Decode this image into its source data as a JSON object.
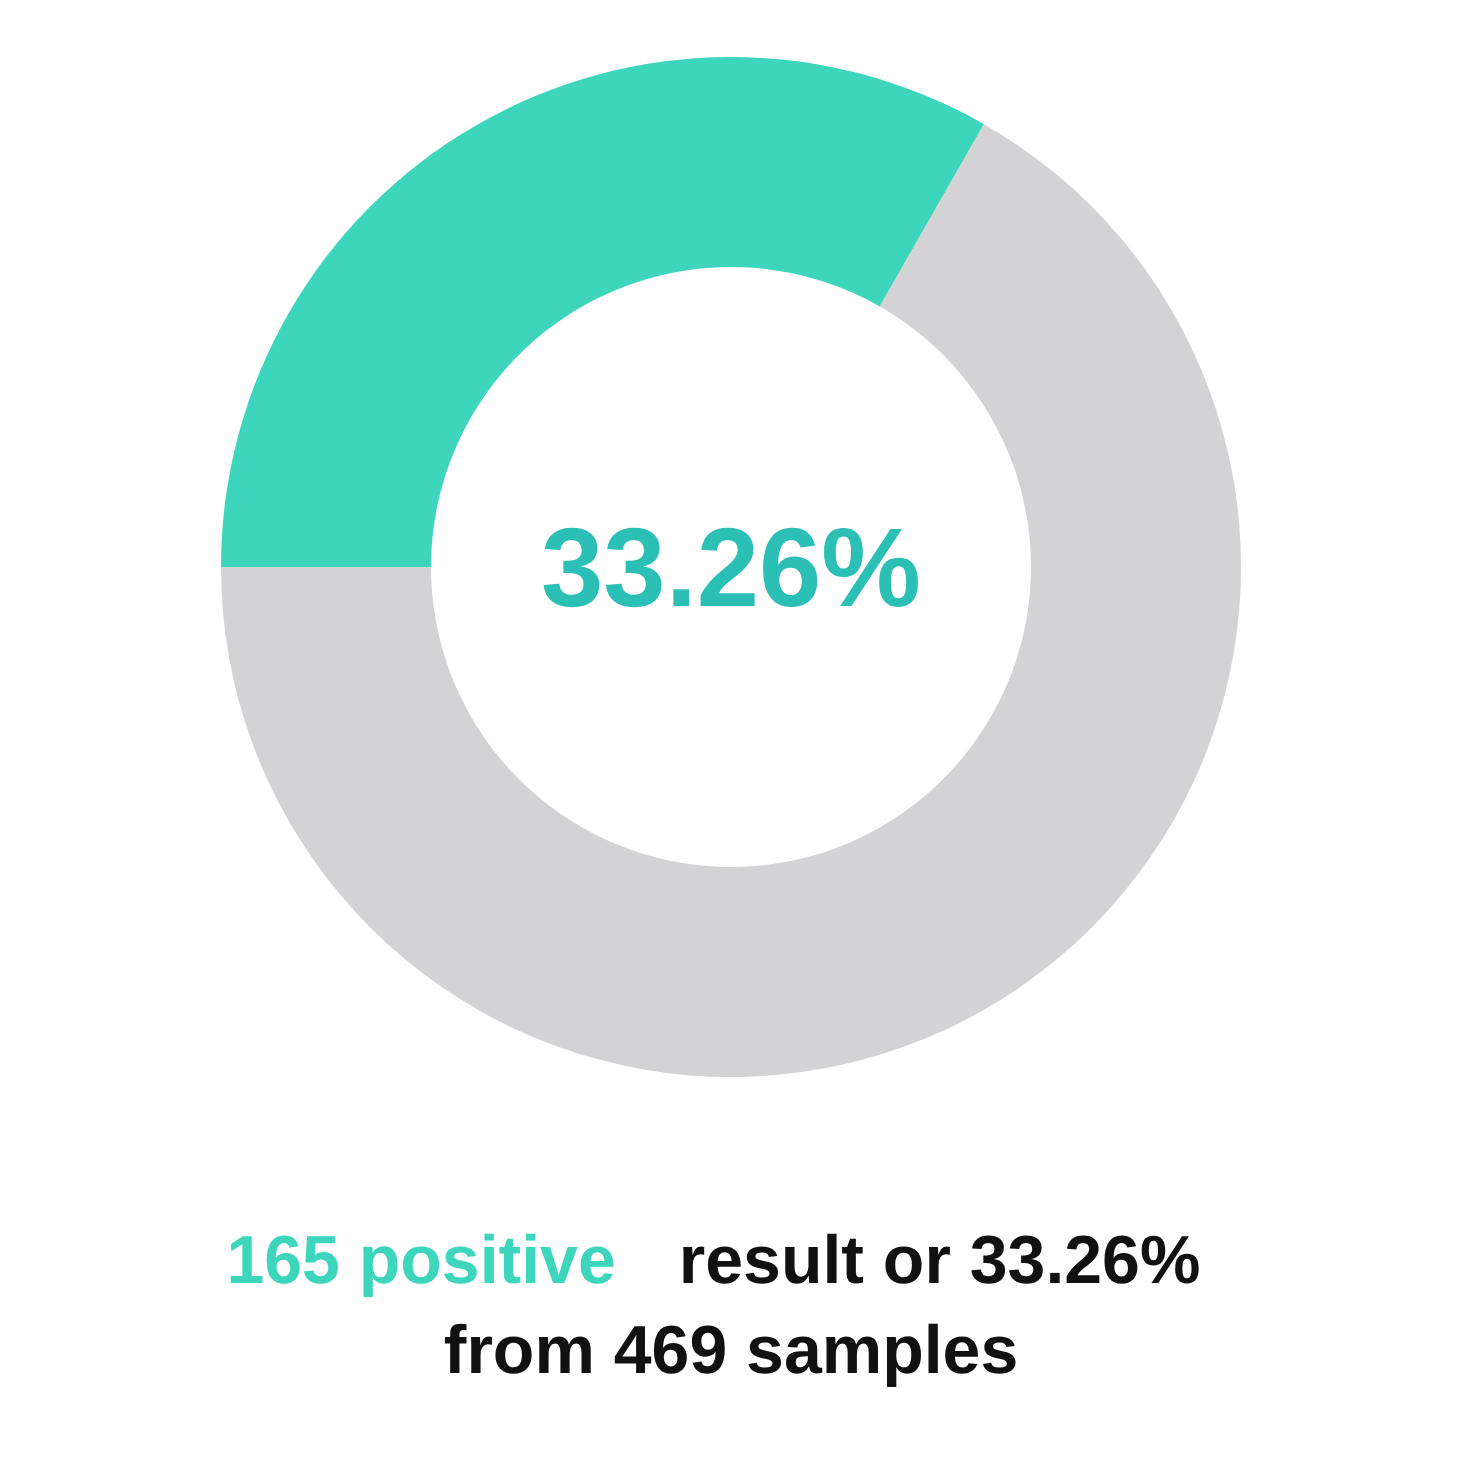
{
  "chart_data": {
    "type": "donut",
    "categories": [
      null,
      null
    ],
    "values": [
      33.26,
      66.74
    ],
    "colors": [
      "#3dd6bd",
      "#d3d3d5"
    ],
    "annotations": [
      "33.26%",
      "165 positive result or 33.26% from 469 samples"
    ]
  }
}
